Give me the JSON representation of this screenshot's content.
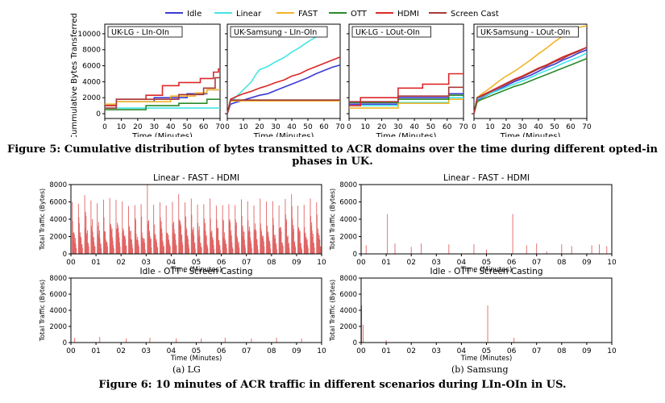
{
  "figure5": {
    "caption": "Figure 5: Cumulative distribution of bytes transmitted to ACR domains over the time during different opted-in phases in UK.",
    "chart_data": {
      "type": "line",
      "ylabel": "Cummulative Bytes Transferred",
      "xlabel": "Time (Minutes)",
      "xlim": [
        0,
        70
      ],
      "xticks": [
        0,
        10,
        20,
        30,
        40,
        50,
        60,
        70
      ],
      "ylim": [
        -600,
        11200
      ],
      "yticks": [
        0,
        2000,
        4000,
        6000,
        8000,
        10000
      ],
      "legend": [
        {
          "name": "Idle",
          "color": "#3b3bd6"
        },
        {
          "name": "Linear",
          "color": "#44e6e6"
        },
        {
          "name": "FAST",
          "color": "#f0b428"
        },
        {
          "name": "OTT",
          "color": "#2a8a2a"
        },
        {
          "name": "HDMI",
          "color": "#dc2828"
        },
        {
          "name": "Screen Cast",
          "color": "#a83a3a"
        }
      ],
      "panels": [
        {
          "title": "UK-LG - LIn-OIn",
          "series": [
            {
              "name": "Idle",
              "x": [
                0,
                7,
                7,
                30,
                30,
                50,
                50,
                62,
                62,
                70
              ],
              "y": [
                1000,
                1000,
                1500,
                1500,
                2000,
                2000,
                2500,
                2500,
                3000,
                3000
              ]
            },
            {
              "name": "Linear",
              "x": [
                0,
                70
              ],
              "y": [
                700,
                700
              ]
            },
            {
              "name": "FAST",
              "x": [
                0,
                7,
                7,
                40,
                40,
                55,
                55,
                62,
                62,
                70
              ],
              "y": [
                1200,
                1200,
                1500,
                1500,
                2200,
                2200,
                2600,
                2600,
                3000,
                3000
              ]
            },
            {
              "name": "OTT",
              "x": [
                0,
                25,
                25,
                45,
                45,
                62,
                62,
                70
              ],
              "y": [
                500,
                500,
                1000,
                1000,
                1300,
                1300,
                1800,
                1800
              ]
            },
            {
              "name": "HDMI",
              "x": [
                0,
                7,
                7,
                25,
                25,
                35,
                35,
                45,
                45,
                58,
                58,
                66,
                66,
                69,
                69,
                70
              ],
              "y": [
                1000,
                1000,
                1800,
                1800,
                2300,
                2300,
                3500,
                3500,
                3900,
                3900,
                4400,
                4400,
                5200,
                5200,
                5600,
                5600
              ]
            },
            {
              "name": "Screen Cast",
              "x": [
                0,
                7,
                7,
                45,
                45,
                60,
                60,
                67,
                67,
                70
              ],
              "y": [
                700,
                700,
                1800,
                1800,
                2400,
                2400,
                3200,
                3200,
                4500,
                4500
              ]
            }
          ]
        },
        {
          "title": "UK-Samsung - LIn-OIn",
          "series": [
            {
              "name": "Idle",
              "x": [
                0,
                2,
                5,
                10,
                15,
                20,
                25,
                30,
                35,
                40,
                45,
                50,
                55,
                60,
                65,
                70
              ],
              "y": [
                0,
                1200,
                1400,
                1700,
                2000,
                2300,
                2500,
                2900,
                3300,
                3700,
                4100,
                4500,
                5000,
                5400,
                5800,
                6100
              ]
            },
            {
              "name": "Linear",
              "x": [
                0,
                2,
                5,
                10,
                15,
                18,
                20,
                25,
                30,
                35,
                40,
                45,
                50,
                55,
                58,
                60
              ],
              "y": [
                0,
                1600,
                2000,
                3000,
                4000,
                5000,
                5500,
                5900,
                6500,
                7000,
                7700,
                8300,
                9000,
                9600,
                10200,
                10700
              ]
            },
            {
              "name": "FAST",
              "x": [
                0,
                2,
                70
              ],
              "y": [
                0,
                1600,
                1600
              ]
            },
            {
              "name": "OTT",
              "x": [
                0,
                2,
                70
              ],
              "y": [
                0,
                1700,
                1700
              ]
            },
            {
              "name": "HDMI",
              "x": [
                0,
                2,
                5,
                10,
                15,
                20,
                25,
                30,
                35,
                40,
                45,
                50,
                55,
                60,
                65,
                70
              ],
              "y": [
                0,
                1800,
                2100,
                2500,
                2800,
                3200,
                3500,
                3900,
                4200,
                4700,
                5000,
                5500,
                5900,
                6300,
                6700,
                7100
              ]
            },
            {
              "name": "Screen Cast",
              "x": [
                0,
                2,
                70
              ],
              "y": [
                0,
                1700,
                1700
              ]
            }
          ]
        },
        {
          "title": "UK-LG - LOut-OIn",
          "series": [
            {
              "name": "Idle",
              "x": [
                0,
                30,
                30,
                61,
                61,
                70
              ],
              "y": [
                1200,
                1200,
                2000,
                2000,
                2500,
                2500
              ]
            },
            {
              "name": "Linear",
              "x": [
                0,
                30,
                30,
                61,
                61,
                70
              ],
              "y": [
                1000,
                1000,
                1400,
                1400,
                2000,
                2000
              ]
            },
            {
              "name": "FAST",
              "x": [
                0,
                30,
                30,
                61,
                61,
                70
              ],
              "y": [
                700,
                700,
                1300,
                1300,
                1800,
                1800
              ]
            },
            {
              "name": "OTT",
              "x": [
                0,
                30,
                30,
                61,
                61,
                70
              ],
              "y": [
                1400,
                1400,
                1800,
                1800,
                2300,
                2300
              ]
            },
            {
              "name": "HDMI",
              "x": [
                0,
                7,
                7,
                30,
                30,
                45,
                45,
                61,
                61,
                70
              ],
              "y": [
                1000,
                1000,
                2000,
                2000,
                3200,
                3200,
                3700,
                3700,
                5000,
                5000
              ]
            },
            {
              "name": "Screen Cast",
              "x": [
                0,
                30,
                30,
                61,
                61,
                70
              ],
              "y": [
                1500,
                1500,
                2200,
                2200,
                3300,
                3300
              ]
            }
          ]
        },
        {
          "title": "UK-Samsung - LOut-OIn",
          "series": [
            {
              "name": "Idle",
              "x": [
                0,
                2,
                5,
                10,
                15,
                20,
                25,
                30,
                35,
                40,
                45,
                50,
                55,
                60,
                65,
                70
              ],
              "y": [
                0,
                1700,
                2000,
                2500,
                3000,
                3500,
                4000,
                4400,
                4800,
                5300,
                5800,
                6200,
                6700,
                7100,
                7600,
                8000
              ]
            },
            {
              "name": "Linear",
              "x": [
                0,
                2,
                5,
                10,
                15,
                20,
                25,
                30,
                35,
                40,
                45,
                50,
                55,
                60,
                65,
                70
              ],
              "y": [
                0,
                1800,
                2100,
                2500,
                2900,
                3300,
                3700,
                4100,
                4500,
                5000,
                5400,
                5800,
                6300,
                6700,
                7100,
                7600
              ]
            },
            {
              "name": "FAST",
              "x": [
                0,
                2,
                5,
                10,
                15,
                20,
                25,
                30,
                35,
                40,
                45,
                50,
                55,
                60,
                65,
                70
              ],
              "y": [
                0,
                2000,
                2500,
                3200,
                4000,
                4700,
                5300,
                6000,
                6700,
                7500,
                8200,
                9000,
                9700,
                10300,
                10800,
                11000
              ]
            },
            {
              "name": "OTT",
              "x": [
                0,
                2,
                5,
                10,
                15,
                20,
                25,
                30,
                35,
                40,
                45,
                50,
                55,
                60,
                65,
                70
              ],
              "y": [
                0,
                1500,
                1800,
                2200,
                2600,
                3000,
                3400,
                3700,
                4100,
                4500,
                4900,
                5300,
                5700,
                6100,
                6500,
                6900
              ]
            },
            {
              "name": "HDMI",
              "x": [
                0,
                2,
                5,
                10,
                15,
                20,
                25,
                30,
                35,
                40,
                45,
                50,
                55,
                60,
                65,
                70
              ],
              "y": [
                0,
                2000,
                2300,
                2800,
                3300,
                3800,
                4300,
                4700,
                5200,
                5700,
                6100,
                6600,
                7100,
                7500,
                7900,
                8300
              ]
            },
            {
              "name": "Screen Cast",
              "x": [
                0,
                2,
                5,
                10,
                15,
                20,
                25,
                30,
                35,
                40,
                45,
                50,
                55,
                60,
                65,
                70
              ],
              "y": [
                0,
                2000,
                2200,
                2700,
                3200,
                3700,
                4200,
                4600,
                5100,
                5600,
                6000,
                6500,
                6900,
                7400,
                7800,
                8300
              ]
            }
          ]
        }
      ]
    }
  },
  "figure6": {
    "caption": "Figure 6: 10 minutes of ACR traffic in different scenarios during LIn-OIn in US.",
    "sub_a": "(a) LG",
    "sub_b": "(b) Samsung",
    "chart_data": {
      "type": "bar",
      "color": "#e06464",
      "ylabel": "Total Traffic (Bytes)",
      "xlabel": "Time (Minutes)",
      "xlim": [
        0,
        10
      ],
      "xticks": [
        "00",
        "01",
        "02",
        "03",
        "04",
        "05",
        "06",
        "07",
        "08",
        "09",
        "10"
      ],
      "ylim": [
        0,
        8000
      ],
      "yticks": [
        0,
        2000,
        4000,
        6000,
        8000
      ],
      "panels": [
        {
          "title": "Linear - FAST - HDMI",
          "pattern": "dense",
          "period_minutes": 0.25,
          "peak_min": 5500,
          "peak_max": 6500,
          "peaks": [
            [
              3.1,
              8000
            ],
            [
              0.5,
              6800
            ],
            [
              4.3,
              6900
            ],
            [
              8.75,
              6900
            ]
          ]
        },
        {
          "title": "Linear - FAST - HDMI",
          "pattern": "sparse",
          "spikes": [
            [
              0.2,
              1000
            ],
            [
              1.05,
              4600
            ],
            [
              1.35,
              1200
            ],
            [
              2.0,
              800
            ],
            [
              2.4,
              1200
            ],
            [
              3.5,
              1100
            ],
            [
              4.5,
              1100
            ],
            [
              5.0,
              500
            ],
            [
              6.05,
              4600
            ],
            [
              6.6,
              1000
            ],
            [
              7.0,
              1200
            ],
            [
              7.4,
              300
            ],
            [
              8.0,
              1100
            ],
            [
              8.4,
              900
            ],
            [
              9.2,
              1000
            ],
            [
              9.5,
              1100
            ],
            [
              9.8,
              900
            ]
          ]
        },
        {
          "title": "Idle - OTT - Screen Casting",
          "pattern": "sparse",
          "spikes": [
            [
              0.15,
              600
            ],
            [
              1.15,
              700
            ],
            [
              2.2,
              500
            ],
            [
              3.15,
              600
            ],
            [
              4.2,
              500
            ],
            [
              5.2,
              500
            ],
            [
              6.15,
              600
            ],
            [
              7.2,
              500
            ],
            [
              8.2,
              600
            ],
            [
              9.2,
              500
            ]
          ]
        },
        {
          "title": "Idle - OTT - Screen Casting",
          "pattern": "sparse",
          "spikes": [
            [
              0.02,
              4600
            ],
            [
              0.08,
              2200
            ],
            [
              1.0,
              300
            ],
            [
              5.05,
              4600
            ],
            [
              6.1,
              600
            ]
          ]
        }
      ]
    }
  }
}
